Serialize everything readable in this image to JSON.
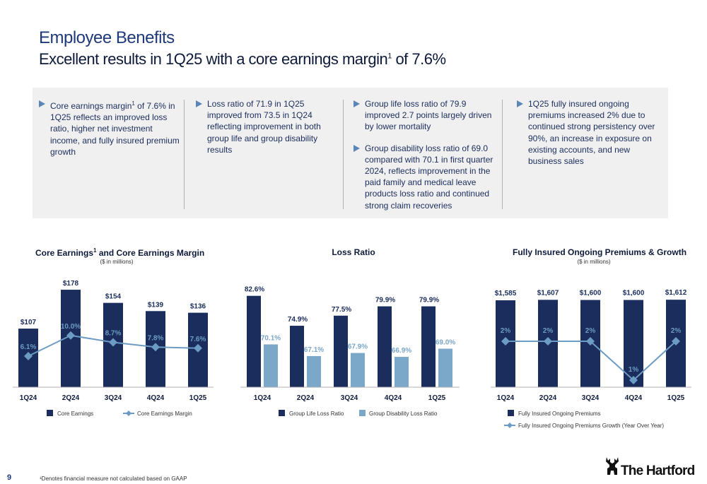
{
  "header": {
    "title": "Employee Benefits",
    "subtitle_pre": "Excellent results in 1Q25 with a core earnings margin",
    "subtitle_sup": "1",
    "subtitle_post": " of 7.6%"
  },
  "highlights": {
    "col1": [
      {
        "pre": "Core earnings margin",
        "sup": "1",
        "post": " of 7.6% in 1Q25 reflects an improved loss ratio, higher net investment income, and fully insured premium growth"
      }
    ],
    "col2": [
      "Loss ratio of 71.9 in 1Q25 improved from 73.5 in 1Q24 reflecting improvement in both group life and group disability results"
    ],
    "col3": [
      "Group life loss ratio of 79.9 improved 2.7 points largely driven by lower mortality",
      "Group disability loss ratio of 69.0 compared with 70.1 in first quarter 2024, reflects improvement in the paid family and medical leave products loss ratio and continued strong claim recoveries"
    ],
    "col4": [
      "1Q25 fully insured ongoing premiums increased 2% due to continued strong persistency over 90%, an increase in exposure on existing accounts, and new business sales"
    ]
  },
  "chart1_title": {
    "pre": "Core Earnings",
    "sup": "1",
    "post": " and Core Earnings Margin"
  },
  "chart3_title": "Fully Insured Ongoing Premiums & Growth",
  "footer": {
    "page": "9",
    "note": "¹Denotes financial measure not calculated based on GAAP",
    "logo": "The Hartford"
  },
  "colors": {
    "navy": "#1a2d5c",
    "light_blue": "#7ba7c9",
    "line": "#6c9bc4"
  },
  "chart_data": [
    {
      "type": "bar",
      "subtitle": "($ in millions)",
      "categories": [
        "1Q24",
        "2Q24",
        "3Q24",
        "4Q24",
        "1Q25"
      ],
      "series": [
        {
          "name": "Core Earnings",
          "values": [
            107,
            178,
            154,
            139,
            136
          ],
          "labels": [
            "$107",
            "$178",
            "$154",
            "$139",
            "$136"
          ]
        },
        {
          "name": "Core Earnings Margin",
          "type": "line",
          "values": [
            6.1,
            10.0,
            8.7,
            7.8,
            7.6
          ],
          "labels": [
            "6.1%",
            "10.0%",
            "8.7%",
            "7.8%",
            "7.6%"
          ]
        }
      ]
    },
    {
      "type": "bar",
      "title": "Loss Ratio",
      "categories": [
        "1Q24",
        "2Q24",
        "3Q24",
        "4Q24",
        "1Q25"
      ],
      "series": [
        {
          "name": "Group Life Loss Ratio",
          "values": [
            82.6,
            74.9,
            77.5,
            79.9,
            79.9
          ],
          "labels": [
            "82.6%",
            "74.9%",
            "77.5%",
            "79.9%",
            "79.9%"
          ]
        },
        {
          "name": "Group Disability Loss Ratio",
          "values": [
            70.1,
            67.1,
            67.9,
            66.9,
            69.0
          ],
          "labels": [
            "70.1%",
            "67.1%",
            "67.9%",
            "66.9%",
            "69.0%"
          ]
        }
      ]
    },
    {
      "type": "bar",
      "subtitle": "($ in millions)",
      "categories": [
        "1Q24",
        "2Q24",
        "3Q24",
        "4Q24",
        "1Q25"
      ],
      "series": [
        {
          "name": "Fully Insured Ongoing Premiums",
          "values": [
            1585,
            1607,
            1600,
            1600,
            1612
          ],
          "labels": [
            "$1,585",
            "$1,607",
            "$1,600",
            "$1,600",
            "$1,612"
          ]
        },
        {
          "name": "Fully Insured Ongoing Premiums Growth (Year Over Year)",
          "type": "line",
          "values": [
            2,
            2,
            2,
            1,
            2
          ],
          "labels": [
            "2%",
            "2%",
            "2%",
            "1%",
            "2%"
          ]
        }
      ]
    }
  ]
}
